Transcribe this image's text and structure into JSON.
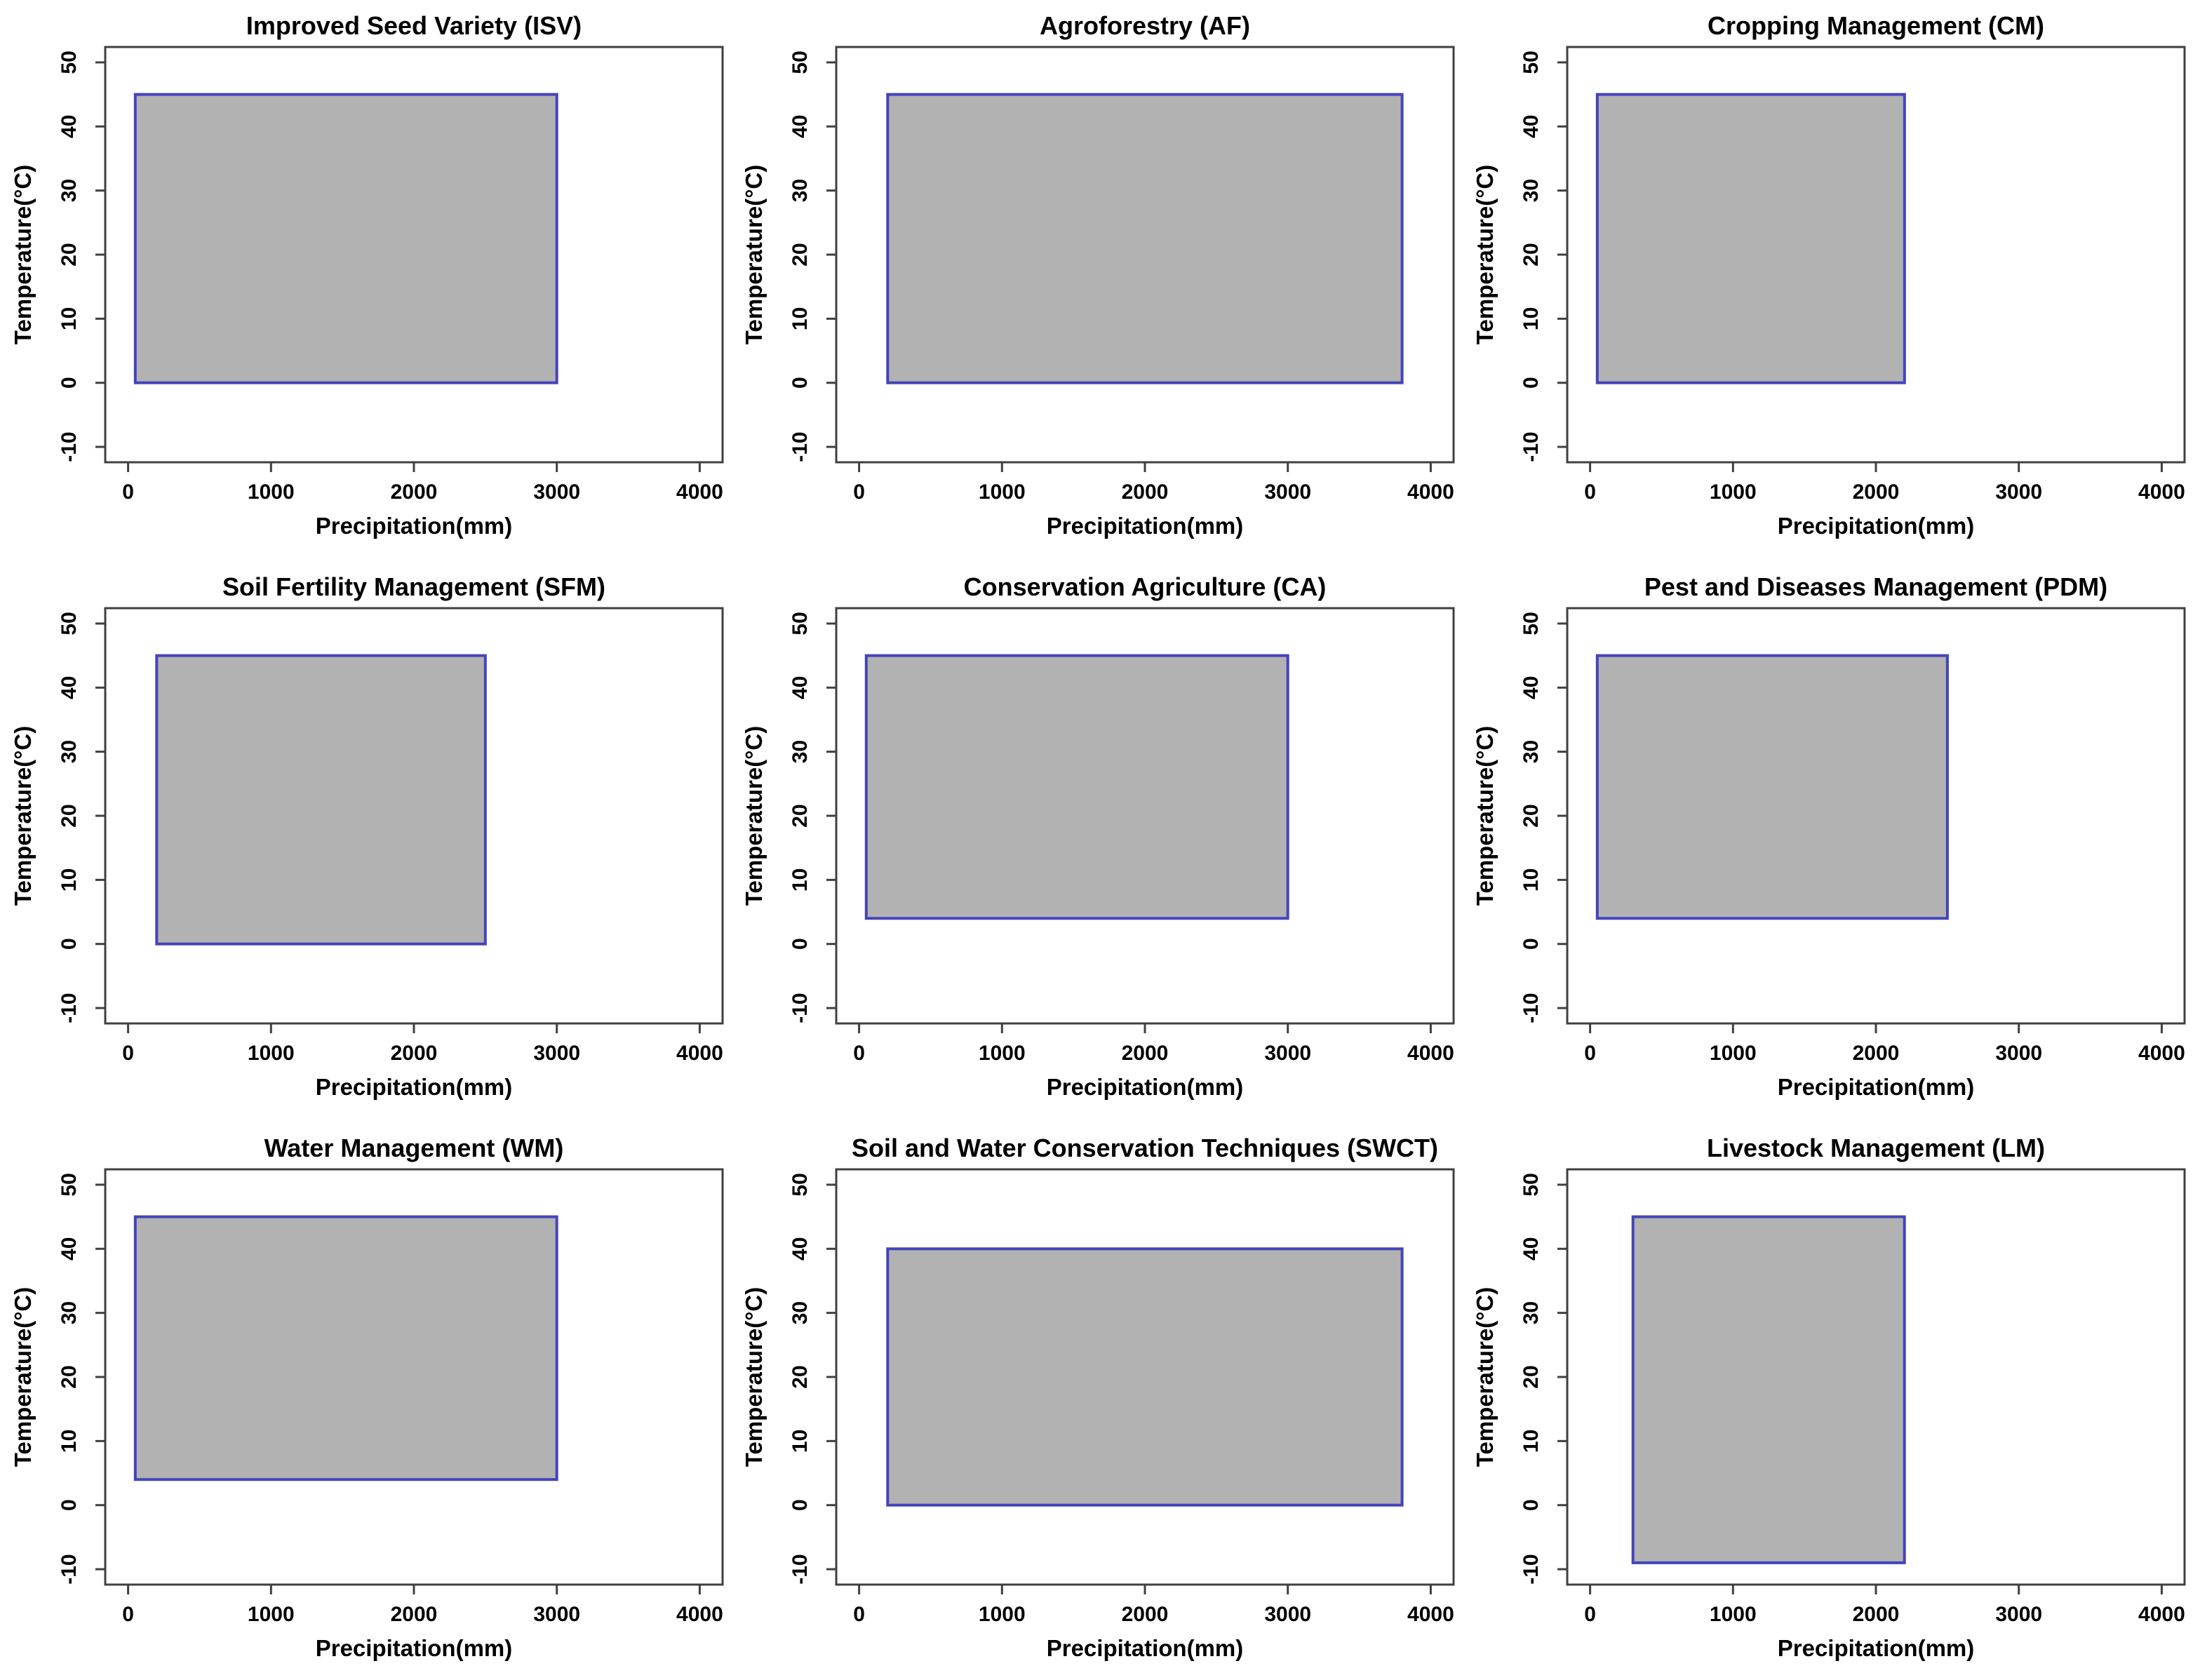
{
  "colors": {
    "envelope_fill": "#b2b2b2",
    "envelope_stroke": "#4444bb",
    "frame": "#404040",
    "text": "#000000",
    "background": "#ffffff"
  },
  "layout": {
    "grid": "3x3",
    "legend": false,
    "grid_lines": false
  },
  "chart_data": [
    {
      "code": "ISV",
      "type": "area",
      "title": "Improved Seed Variety (ISV)",
      "xlabel": "Precipitation(mm)",
      "ylabel": "Temperature(°C)",
      "xlim": [
        0,
        4000
      ],
      "ylim": [
        -10,
        50
      ],
      "xticks": [
        0,
        1000,
        2000,
        3000,
        4000
      ],
      "yticks": [
        -10,
        0,
        10,
        20,
        30,
        40,
        50
      ],
      "envelope": {
        "precipitation_mm": [
          50,
          3000
        ],
        "temperature_c": [
          0,
          45
        ]
      }
    },
    {
      "code": "AF",
      "type": "area",
      "title": "Agroforestry (AF)",
      "xlabel": "Precipitation(mm)",
      "ylabel": "Temperature(°C)",
      "xlim": [
        0,
        4000
      ],
      "ylim": [
        -10,
        50
      ],
      "xticks": [
        0,
        1000,
        2000,
        3000,
        4000
      ],
      "yticks": [
        -10,
        0,
        10,
        20,
        30,
        40,
        50
      ],
      "envelope": {
        "precipitation_mm": [
          200,
          3800
        ],
        "temperature_c": [
          0,
          45
        ]
      }
    },
    {
      "code": "CM",
      "type": "area",
      "title": "Cropping Management (CM)",
      "xlabel": "Precipitation(mm)",
      "ylabel": "Temperature(°C)",
      "xlim": [
        0,
        4000
      ],
      "ylim": [
        -10,
        50
      ],
      "xticks": [
        0,
        1000,
        2000,
        3000,
        4000
      ],
      "yticks": [
        -10,
        0,
        10,
        20,
        30,
        40,
        50
      ],
      "envelope": {
        "precipitation_mm": [
          50,
          2200
        ],
        "temperature_c": [
          0,
          45
        ]
      }
    },
    {
      "code": "SFM",
      "type": "area",
      "title": "Soil Fertility Management (SFM)",
      "xlabel": "Precipitation(mm)",
      "ylabel": "Temperature(°C)",
      "xlim": [
        0,
        4000
      ],
      "ylim": [
        -10,
        50
      ],
      "xticks": [
        0,
        1000,
        2000,
        3000,
        4000
      ],
      "yticks": [
        -10,
        0,
        10,
        20,
        30,
        40,
        50
      ],
      "envelope": {
        "precipitation_mm": [
          200,
          2500
        ],
        "temperature_c": [
          0,
          45
        ]
      }
    },
    {
      "code": "CA",
      "type": "area",
      "title": "Conservation Agriculture (CA)",
      "xlabel": "Precipitation(mm)",
      "ylabel": "Temperature(°C)",
      "xlim": [
        0,
        4000
      ],
      "ylim": [
        -10,
        50
      ],
      "xticks": [
        0,
        1000,
        2000,
        3000,
        4000
      ],
      "yticks": [
        -10,
        0,
        10,
        20,
        30,
        40,
        50
      ],
      "envelope": {
        "precipitation_mm": [
          50,
          3000
        ],
        "temperature_c": [
          4,
          45
        ]
      }
    },
    {
      "code": "PDM",
      "type": "area",
      "title": "Pest and Diseases Management (PDM)",
      "xlabel": "Precipitation(mm)",
      "ylabel": "Temperature(°C)",
      "xlim": [
        0,
        4000
      ],
      "ylim": [
        -10,
        50
      ],
      "xticks": [
        0,
        1000,
        2000,
        3000,
        4000
      ],
      "yticks": [
        -10,
        0,
        10,
        20,
        30,
        40,
        50
      ],
      "envelope": {
        "precipitation_mm": [
          50,
          2500
        ],
        "temperature_c": [
          4,
          45
        ]
      }
    },
    {
      "code": "WM",
      "type": "area",
      "title": "Water Management (WM)",
      "xlabel": "Precipitation(mm)",
      "ylabel": "Temperature(°C)",
      "xlim": [
        0,
        4000
      ],
      "ylim": [
        -10,
        50
      ],
      "xticks": [
        0,
        1000,
        2000,
        3000,
        4000
      ],
      "yticks": [
        -10,
        0,
        10,
        20,
        30,
        40,
        50
      ],
      "envelope": {
        "precipitation_mm": [
          50,
          3000
        ],
        "temperature_c": [
          4,
          45
        ]
      }
    },
    {
      "code": "SWCT",
      "type": "area",
      "title": "Soil and Water Conservation Techniques (SWCT)",
      "xlabel": "Precipitation(mm)",
      "ylabel": "Temperature(°C)",
      "xlim": [
        0,
        4000
      ],
      "ylim": [
        -10,
        50
      ],
      "xticks": [
        0,
        1000,
        2000,
        3000,
        4000
      ],
      "yticks": [
        -10,
        0,
        10,
        20,
        30,
        40,
        50
      ],
      "envelope": {
        "precipitation_mm": [
          200,
          3800
        ],
        "temperature_c": [
          0,
          40
        ]
      }
    },
    {
      "code": "LM",
      "type": "area",
      "title": "Livestock Management (LM)",
      "xlabel": "Precipitation(mm)",
      "ylabel": "Temperature(°C)",
      "xlim": [
        0,
        4000
      ],
      "ylim": [
        -10,
        50
      ],
      "xticks": [
        0,
        1000,
        2000,
        3000,
        4000
      ],
      "yticks": [
        -10,
        0,
        10,
        20,
        30,
        40,
        50
      ],
      "envelope": {
        "precipitation_mm": [
          300,
          2200
        ],
        "temperature_c": [
          -9,
          45
        ]
      }
    }
  ]
}
